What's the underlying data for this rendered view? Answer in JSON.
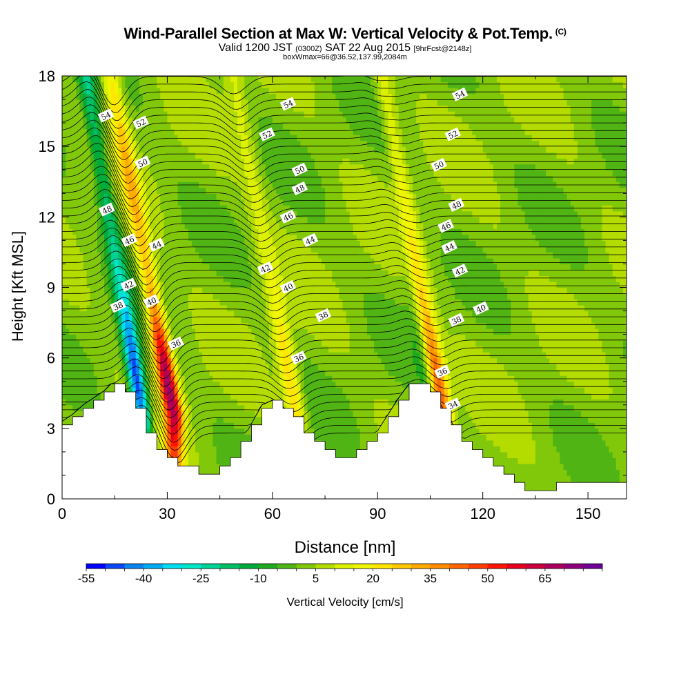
{
  "chart_data": {
    "type": "heatmap",
    "title": "Wind-Parallel Section at Max W: Vertical Velocity & Pot.Temp.",
    "title_mark": "(C)",
    "subtitle": {
      "valid": "Valid 1200 JST",
      "zulu": "(0300Z)",
      "date": "SAT 22 Aug 2015",
      "forecast": "[9hrFcst@2148z]"
    },
    "subtitle2": "boxWmax=66@36.52,137.99,2084m",
    "xlabel": "Distance [nm]",
    "ylabel": "Height [Kft MSL]",
    "xlim": [
      0,
      161
    ],
    "ylim": [
      0,
      18
    ],
    "x_ticks": [
      "0",
      "30",
      "60",
      "90",
      "120",
      "150"
    ],
    "y_ticks": [
      "0",
      "3",
      "6",
      "9",
      "12",
      "15",
      "18"
    ],
    "colorbar": {
      "label": "Vertical Velocity [cm/s]",
      "tick_labels": [
        "-55",
        "-40",
        "-25",
        "-10",
        "5",
        "20",
        "35",
        "50",
        "65"
      ],
      "levels": [
        -55,
        -50,
        -45,
        -40,
        -35,
        -30,
        -25,
        -20,
        -15,
        -10,
        -5,
        0,
        5,
        10,
        15,
        20,
        25,
        30,
        35,
        40,
        45,
        50,
        55,
        60,
        65,
        70,
        75
      ],
      "colors": [
        "#0000ff",
        "#0a46f5",
        "#0a82f0",
        "#00aaf5",
        "#00dcf0",
        "#00e6c8",
        "#00d296",
        "#00be64",
        "#00aa3c",
        "#1eaa1e",
        "#50b414",
        "#82c80a",
        "#b4dc00",
        "#dcf000",
        "#f0f500",
        "#ffe600",
        "#ffc800",
        "#ffaa00",
        "#ff8c00",
        "#ff6400",
        "#ff3c00",
        "#ff1400",
        "#e6001e",
        "#c8003c",
        "#aa005a",
        "#8c0078",
        "#6e0096"
      ]
    },
    "terrain_kft": [
      [
        0,
        3.3
      ],
      [
        3,
        3.6
      ],
      [
        6,
        4.0
      ],
      [
        9,
        4.3
      ],
      [
        12,
        4.6
      ],
      [
        14,
        4.9
      ],
      [
        17,
        4.9
      ],
      [
        19,
        4.4
      ],
      [
        22,
        3.6
      ],
      [
        25,
        2.6
      ],
      [
        28,
        2.1
      ],
      [
        31,
        1.6
      ],
      [
        34,
        1.5
      ],
      [
        37,
        1.2
      ],
      [
        40,
        1.0
      ],
      [
        44,
        1.2
      ],
      [
        48,
        1.7
      ],
      [
        51,
        2.4
      ],
      [
        54,
        3.2
      ],
      [
        57,
        4.0
      ],
      [
        60,
        4.2
      ],
      [
        63,
        3.9
      ],
      [
        66,
        3.4
      ],
      [
        69,
        2.7
      ],
      [
        72,
        2.4
      ],
      [
        75,
        2.0
      ],
      [
        78,
        1.7
      ],
      [
        81,
        1.7
      ],
      [
        84,
        2.0
      ],
      [
        87,
        2.4
      ],
      [
        90,
        2.9
      ],
      [
        93,
        3.6
      ],
      [
        96,
        4.3
      ],
      [
        99,
        4.9
      ],
      [
        102,
        4.9
      ],
      [
        105,
        4.6
      ],
      [
        108,
        4.0
      ],
      [
        111,
        3.3
      ],
      [
        114,
        2.6
      ],
      [
        117,
        2.0
      ],
      [
        120,
        1.7
      ],
      [
        123,
        1.4
      ],
      [
        126,
        1.0
      ],
      [
        129,
        0.6
      ],
      [
        132,
        0.35
      ],
      [
        138,
        0.35
      ],
      [
        141,
        0.7
      ],
      [
        150,
        0.7
      ],
      [
        161,
        0.7
      ]
    ],
    "updraft_cores": [
      {
        "x": 32,
        "w": 66
      },
      {
        "x": 67,
        "w": 25
      },
      {
        "x": 109,
        "w": 45
      }
    ],
    "downdraft_cores": [
      {
        "x": 23,
        "w": -55
      },
      {
        "x": 106,
        "w": -10
      }
    ],
    "contour_labels": [
      {
        "text": "54",
        "x": 12.5,
        "y": 16.3
      },
      {
        "text": "52",
        "x": 22.5,
        "y": 16.0
      },
      {
        "text": "50",
        "x": 23.0,
        "y": 14.3
      },
      {
        "text": "48",
        "x": 12.8,
        "y": 12.3
      },
      {
        "text": "46",
        "x": 19.2,
        "y": 11.0
      },
      {
        "text": "44",
        "x": 27.0,
        "y": 10.8
      },
      {
        "text": "42",
        "x": 19.0,
        "y": 9.1
      },
      {
        "text": "40",
        "x": 25.5,
        "y": 8.4
      },
      {
        "text": "38",
        "x": 16.0,
        "y": 8.2
      },
      {
        "text": "36",
        "x": 32.5,
        "y": 6.6
      },
      {
        "text": "54",
        "x": 64.5,
        "y": 16.8
      },
      {
        "text": "52",
        "x": 58.5,
        "y": 15.5
      },
      {
        "text": "50",
        "x": 67.8,
        "y": 14.0
      },
      {
        "text": "48",
        "x": 67.8,
        "y": 13.2
      },
      {
        "text": "46",
        "x": 64.5,
        "y": 12.0
      },
      {
        "text": "44",
        "x": 70.8,
        "y": 11.0
      },
      {
        "text": "42",
        "x": 58.0,
        "y": 9.8
      },
      {
        "text": "40",
        "x": 64.5,
        "y": 9.0
      },
      {
        "text": "38",
        "x": 74.5,
        "y": 7.8
      },
      {
        "text": "36",
        "x": 67.5,
        "y": 6.0
      },
      {
        "text": "54",
        "x": 113.5,
        "y": 17.2
      },
      {
        "text": "52",
        "x": 111.5,
        "y": 15.5
      },
      {
        "text": "50",
        "x": 107.5,
        "y": 14.2
      },
      {
        "text": "48",
        "x": 112.5,
        "y": 12.5
      },
      {
        "text": "46",
        "x": 109.5,
        "y": 11.6
      },
      {
        "text": "44",
        "x": 110.5,
        "y": 10.7
      },
      {
        "text": "42",
        "x": 113.5,
        "y": 9.7
      },
      {
        "text": "40",
        "x": 119.5,
        "y": 8.1
      },
      {
        "text": "38",
        "x": 112.5,
        "y": 7.6
      },
      {
        "text": "36",
        "x": 108.5,
        "y": 5.4
      },
      {
        "text": "34",
        "x": 111.5,
        "y": 4.0
      }
    ]
  }
}
